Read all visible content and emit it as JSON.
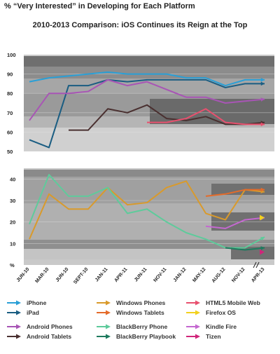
{
  "headline": "% “Very Interested” in Developing for Each Platform",
  "chart_data": {
    "type": "line",
    "title": "2010-2013 Comparison: iOS Continues its Reign at the Top",
    "x": [
      "JUN-10",
      "MAR-10",
      "JUN-10",
      "SEPT-10",
      "JAN-11",
      "APR-11",
      "JUN-11",
      "NOV-11",
      "JAN-12",
      "MAY-12",
      "AUG-12",
      "NOV-12",
      "APR-13"
    ],
    "upper_panel": {
      "ylim": [
        50,
        100
      ],
      "y_ticks": [
        "100",
        "90",
        "80",
        "70",
        "60",
        "50"
      ],
      "series": [
        {
          "name": "iPhone",
          "color": "#2a9fd6",
          "values": [
            86,
            88,
            89,
            90,
            91,
            90,
            90,
            90,
            88,
            88,
            84,
            87,
            87
          ]
        },
        {
          "name": "iPad",
          "color": "#1a5d82",
          "values": [
            56,
            52,
            84,
            84,
            87,
            86,
            87,
            87,
            87,
            87,
            83,
            85,
            85
          ]
        },
        {
          "name": "Android Phones",
          "color": "#a855b5",
          "values": [
            66,
            80,
            80,
            81,
            87,
            84,
            86,
            82,
            78,
            78,
            75,
            76,
            77
          ]
        },
        {
          "name": "Android Tablets",
          "color": "#4a3030",
          "values": [
            null,
            null,
            61,
            61,
            72,
            70,
            74,
            67,
            66,
            68,
            64,
            64,
            65
          ]
        },
        {
          "name": "HTML5 Mobile Web",
          "color": "#e8506e",
          "values": [
            null,
            null,
            null,
            null,
            null,
            null,
            65,
            65,
            67,
            72,
            65,
            64,
            64
          ]
        }
      ]
    },
    "lower_panel": {
      "ylim": [
        0,
        45
      ],
      "y_ticks": [
        "40",
        "30",
        "20",
        "10",
        "%"
      ],
      "series": [
        {
          "name": "Windows Phones",
          "color": "#d99a2b",
          "values": [
            12,
            33,
            26,
            26,
            36,
            28,
            29,
            36,
            39,
            24,
            21,
            35,
            34
          ]
        },
        {
          "name": "Windows Tablets",
          "color": "#e46b2a",
          "values": [
            null,
            null,
            null,
            null,
            null,
            null,
            null,
            null,
            null,
            32,
            33,
            35,
            35
          ]
        },
        {
          "name": "BlackBerry Phone",
          "color": "#5ecb9b",
          "values": [
            19,
            42,
            32,
            32,
            36,
            24,
            26,
            20,
            15,
            12,
            8,
            8,
            13
          ]
        },
        {
          "name": "BlackBerry Playbook",
          "color": "#1e7a5e",
          "values": [
            null,
            null,
            null,
            null,
            null,
            null,
            null,
            null,
            null,
            null,
            8,
            7,
            8
          ]
        },
        {
          "name": "Kindle Fire",
          "color": "#c468d0",
          "values": [
            null,
            null,
            null,
            null,
            null,
            null,
            null,
            null,
            null,
            18,
            17,
            21,
            22
          ]
        },
        {
          "name": "Firefox OS",
          "color": "#f2d11e",
          "values": [
            null,
            null,
            null,
            null,
            null,
            null,
            null,
            null,
            null,
            null,
            null,
            null,
            22
          ]
        },
        {
          "name": "Tizen",
          "color": "#d0257a",
          "values": [
            null,
            null,
            null,
            null,
            null,
            null,
            null,
            null,
            null,
            null,
            null,
            null,
            6
          ]
        }
      ]
    },
    "grid": true,
    "legend_position": "bottom"
  },
  "legend": [
    {
      "label": "iPhone",
      "color": "#2a9fd6"
    },
    {
      "label": "iPad",
      "color": "#1a5d82"
    },
    {
      "label": "Windows Phones",
      "color": "#d99a2b"
    },
    {
      "label": "Windows Tablets",
      "color": "#e46b2a"
    },
    {
      "label": "HTML5 Mobile Web",
      "color": "#e8506e"
    },
    {
      "label": "Firefox OS",
      "color": "#f2d11e"
    },
    {
      "label": "Android Phones",
      "color": "#a855b5"
    },
    {
      "label": "Android Tablets",
      "color": "#4a3030"
    },
    {
      "label": "BlackBerry Phone",
      "color": "#5ecb9b"
    },
    {
      "label": "BlackBerry Playbook",
      "color": "#1e7a5e"
    },
    {
      "label": "Kindle Fire",
      "color": "#c468d0"
    },
    {
      "label": "Tizen",
      "color": "#d0257a"
    }
  ]
}
